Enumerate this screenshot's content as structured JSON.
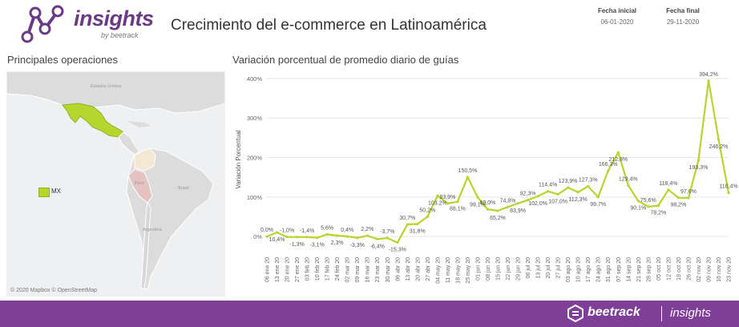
{
  "header": {
    "logo_word": "insights",
    "logo_sub": "by beetrack",
    "title": "Crecimiento del e-commerce en Latinoamérica",
    "start_label": "Fecha inicial",
    "start_value": "06-01-2020",
    "end_label": "Fecha final",
    "end_value": "29-11-2020"
  },
  "map": {
    "title": "Principales operaciones",
    "legend_label": "MX",
    "highlight_color": "#b5d62c",
    "credit": "© 2020 Mapbox © OpenStreetMap",
    "geo_labels": [
      "Estados Unidos",
      "Brasil",
      "Perú",
      "Argentina"
    ]
  },
  "footer": {
    "brand": "beetrack",
    "product": "insights",
    "background": "#7f3f98"
  },
  "chart_data": {
    "type": "line",
    "title": "Variación porcentual de promedio diario de guías",
    "ylabel": "Variación Porcentual",
    "xlabel": "",
    "ylim": [
      -20,
      410
    ],
    "y_ticks": [
      "0%",
      "100%",
      "200%",
      "300%",
      "400%"
    ],
    "line_color": "#b5d62c",
    "grid": "horizontal",
    "categories": [
      "06 ene 20",
      "13 ene 20",
      "20 ene 20",
      "27 ene 20",
      "03 feb 20",
      "10 feb 20",
      "17 feb 20",
      "24 feb 20",
      "02 mar 20",
      "09 mar 20",
      "16 mar 20",
      "23 mar 20",
      "30 mar 20",
      "06 abr 20",
      "13 abr 20",
      "20 abr 20",
      "27 abr 20",
      "04 may 20",
      "11 may 20",
      "18 may 20",
      "25 may 20",
      "01 jun 20",
      "08 jun 20",
      "15 jun 20",
      "22 jun 20",
      "29 jun 20",
      "06 jul 20",
      "13 jul 20",
      "20 jul 20",
      "27 jul 20",
      "03 ago 20",
      "10 ago 20",
      "17 ago 20",
      "24 ago 20",
      "31 ago 20",
      "07 sep 20",
      "14 sep 20",
      "21 sep 20",
      "28 sep 20",
      "05 oct 20",
      "12 oct 20",
      "19 oct 20",
      "26 oct 20",
      "02 nov 20",
      "09 nov 20",
      "16 nov 20",
      "23 nov 20"
    ],
    "values": [
      0.0,
      10.4,
      -1.0,
      -1.3,
      -1.4,
      -3.1,
      5.6,
      2.3,
      0.4,
      -3.3,
      2.2,
      -6.4,
      -3.7,
      -15.3,
      30.7,
      31.8,
      50.2,
      103.2,
      83.9,
      88.1,
      150.5,
      99.1,
      69.0,
      65.2,
      74.8,
      83.9,
      92.3,
      102.0,
      114.4,
      107.0,
      123.9,
      112.3,
      127.3,
      99.7,
      166.3,
      212.8,
      129.4,
      90.1,
      75.6,
      78.2,
      118.4,
      98.2,
      97.6,
      193.3,
      394.2,
      246.2,
      110.4
    ],
    "labels": [
      "0,0%",
      "10,4%",
      "-1,0%",
      "-1,3%",
      "-1,4%",
      "-3,1%",
      "5,6%",
      "2,3%",
      "0,4%",
      "-3,3%",
      "2,2%",
      "-6,4%",
      "-3,7%",
      "-15,3%",
      "30,7%",
      "31,8%",
      "50,2%",
      "103,2%",
      "83,9%",
      "88,1%",
      "150,5%",
      "99,1%",
      "69,0%",
      "65,2%",
      "74,8%",
      "83,9%",
      "92,3%",
      "102,0%",
      "114,4%",
      "107,0%",
      "123,9%",
      "112,3%",
      "127,3%",
      "99,7%",
      "166,3%",
      "212,8%",
      "129,4%",
      "90,1%",
      "75,6%",
      "78,2%",
      "118,4%",
      "98,2%",
      "97,6%",
      "193,3%",
      "394,2%",
      "246,2%",
      "110,4%"
    ]
  }
}
